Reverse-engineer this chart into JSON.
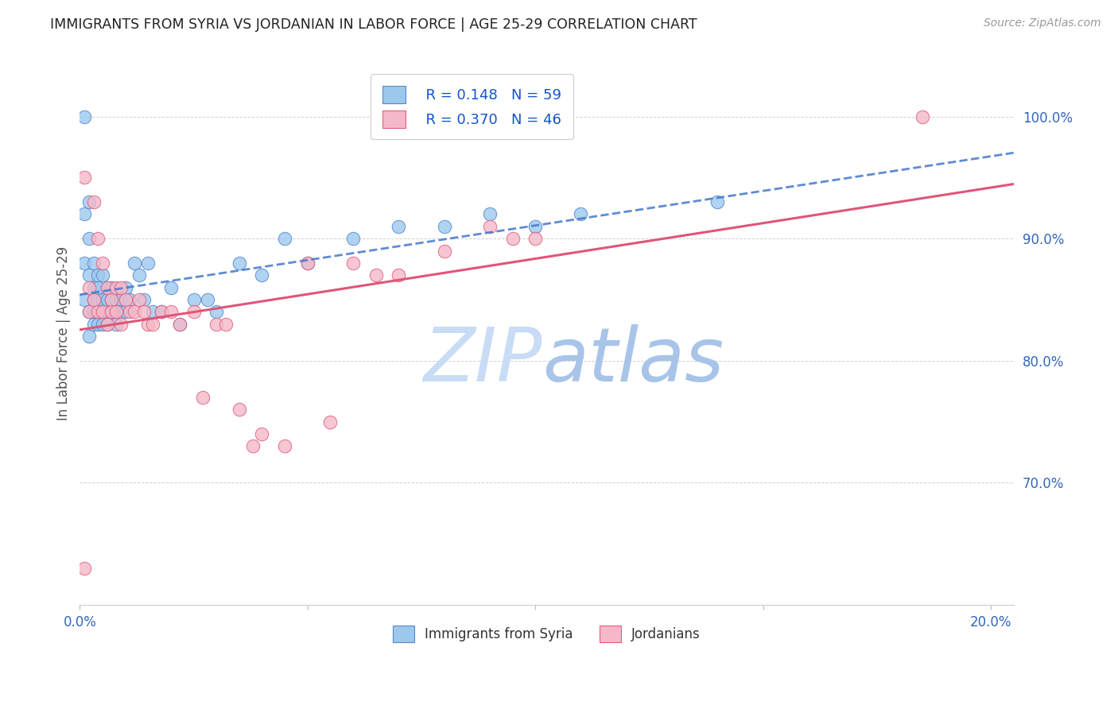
{
  "title": "IMMIGRANTS FROM SYRIA VS JORDANIAN IN LABOR FORCE | AGE 25-29 CORRELATION CHART",
  "source": "Source: ZipAtlas.com",
  "ylabel": "In Labor Force | Age 25-29",
  "xlim": [
    0.0,
    0.205
  ],
  "ylim": [
    0.6,
    1.045
  ],
  "xticks": [
    0.0,
    0.05,
    0.1,
    0.15,
    0.2
  ],
  "xticklabels_show": [
    "0.0%",
    "",
    "",
    "",
    "20.0%"
  ],
  "ytick_positions": [
    0.7,
    0.8,
    0.9,
    1.0
  ],
  "ytick_labels": [
    "70.0%",
    "80.0%",
    "90.0%",
    "100.0%"
  ],
  "color_blue_fill": "#9DC8EE",
  "color_blue_edge": "#5588CC",
  "color_pink_fill": "#F5B8C8",
  "color_pink_edge": "#E06080",
  "color_blue_line": "#4477CC",
  "color_pink_line": "#E05577",
  "legend_r_blue": "R = 0.148",
  "legend_n_blue": "N = 59",
  "legend_r_pink": "R = 0.370",
  "legend_n_pink": "N = 46",
  "blue_slope": 0.45,
  "blue_intercept": 0.855,
  "pink_slope": 0.85,
  "pink_intercept": 0.835,
  "blue_x": [
    0.001,
    0.001,
    0.001,
    0.001,
    0.002,
    0.002,
    0.002,
    0.002,
    0.002,
    0.003,
    0.003,
    0.003,
    0.003,
    0.003,
    0.004,
    0.004,
    0.004,
    0.004,
    0.005,
    0.005,
    0.005,
    0.005,
    0.006,
    0.006,
    0.006,
    0.006,
    0.007,
    0.007,
    0.007,
    0.008,
    0.008,
    0.008,
    0.009,
    0.009,
    0.01,
    0.01,
    0.011,
    0.012,
    0.013,
    0.014,
    0.015,
    0.016,
    0.018,
    0.02,
    0.022,
    0.025,
    0.028,
    0.03,
    0.035,
    0.04,
    0.045,
    0.05,
    0.06,
    0.07,
    0.08,
    0.09,
    0.1,
    0.11,
    0.14
  ],
  "blue_y": [
    1.0,
    0.92,
    0.88,
    0.85,
    0.93,
    0.9,
    0.87,
    0.84,
    0.82,
    0.88,
    0.86,
    0.84,
    0.83,
    0.85,
    0.87,
    0.85,
    0.83,
    0.86,
    0.85,
    0.87,
    0.84,
    0.83,
    0.86,
    0.84,
    0.83,
    0.85,
    0.85,
    0.84,
    0.86,
    0.84,
    0.85,
    0.83,
    0.85,
    0.84,
    0.84,
    0.86,
    0.85,
    0.88,
    0.87,
    0.85,
    0.88,
    0.84,
    0.84,
    0.86,
    0.83,
    0.85,
    0.85,
    0.84,
    0.88,
    0.87,
    0.9,
    0.88,
    0.9,
    0.91,
    0.91,
    0.92,
    0.91,
    0.92,
    0.93
  ],
  "pink_x": [
    0.001,
    0.001,
    0.002,
    0.002,
    0.003,
    0.003,
    0.004,
    0.004,
    0.005,
    0.005,
    0.006,
    0.006,
    0.007,
    0.007,
    0.008,
    0.008,
    0.009,
    0.009,
    0.01,
    0.011,
    0.012,
    0.013,
    0.014,
    0.015,
    0.016,
    0.018,
    0.02,
    0.022,
    0.025,
    0.027,
    0.03,
    0.032,
    0.035,
    0.038,
    0.04,
    0.045,
    0.05,
    0.055,
    0.06,
    0.065,
    0.07,
    0.08,
    0.09,
    0.095,
    0.1,
    0.185
  ],
  "pink_y": [
    0.63,
    0.95,
    0.86,
    0.84,
    0.93,
    0.85,
    0.9,
    0.84,
    0.88,
    0.84,
    0.86,
    0.83,
    0.85,
    0.84,
    0.86,
    0.84,
    0.86,
    0.83,
    0.85,
    0.84,
    0.84,
    0.85,
    0.84,
    0.83,
    0.83,
    0.84,
    0.84,
    0.83,
    0.84,
    0.77,
    0.83,
    0.83,
    0.76,
    0.73,
    0.74,
    0.73,
    0.88,
    0.75,
    0.88,
    0.87,
    0.87,
    0.89,
    0.91,
    0.9,
    0.9,
    1.0
  ]
}
